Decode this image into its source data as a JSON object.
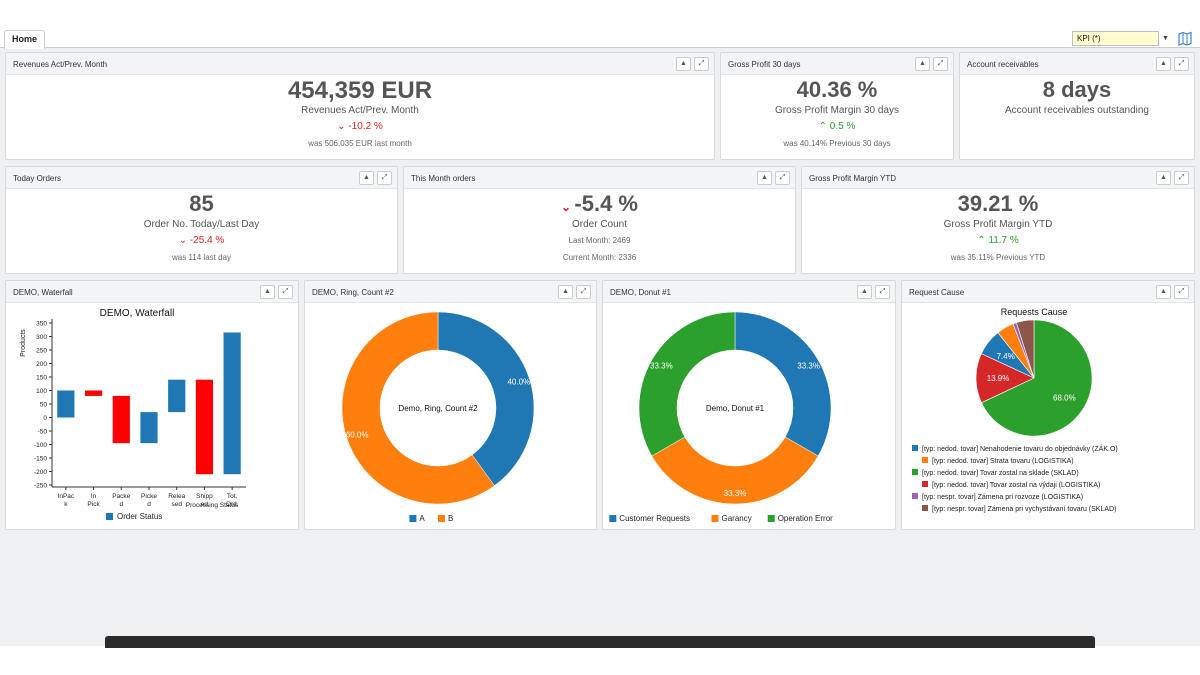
{
  "tabs": {
    "home": "Home"
  },
  "kpi_select": {
    "value": "KPI  (*)"
  },
  "panels": {
    "revenues": {
      "title": "Revenues Act/Prev. Month",
      "value": "454,359 EUR",
      "subtitle": "Revenues Act/Prev. Month",
      "change": "-10.2 %",
      "note": "was 506,035 EUR last month"
    },
    "gross30": {
      "title": "Gross Profit 30 days",
      "value": "40.36 %",
      "subtitle": "Gross Profit Margin 30 days",
      "change": "0.5 %",
      "note": "was 40.14% Previous 30 days"
    },
    "receivables": {
      "title": "Account receivables",
      "value": "8 days",
      "subtitle": "Account receivables outstanding"
    },
    "today_orders": {
      "title": "Today Orders",
      "value": "85",
      "subtitle": "Order No. Today/Last Day",
      "change": "-25.4 %",
      "note": "was 114 last day"
    },
    "month_orders": {
      "title": "This Month orders",
      "value": "-5.4 %",
      "subtitle": "Order Count",
      "line1": "Last Month: 2469",
      "line2": "Current Month: 2336"
    },
    "gross_ytd": {
      "title": "Gross Profit Margin YTD",
      "value": "39.21 %",
      "subtitle": "Gross Profit Margin YTD",
      "change": "11.7 %",
      "note": "was 35.11% Previous YTD"
    },
    "waterfall": {
      "title": "DEMO, Waterfall"
    },
    "ring": {
      "title": "DEMO, Ring, Count #2"
    },
    "donut": {
      "title": "DEMO, Donut #1"
    },
    "request": {
      "title": "Request Cause"
    }
  },
  "colors": {
    "blue": "#1f77b4",
    "orange": "#ff7f0e",
    "green": "#2ca02c",
    "red": "#d62728",
    "purple": "#9467bd",
    "brown": "#8c564b",
    "bar_red": "#ff0000",
    "up": "#2a9a2a",
    "down": "#e02020"
  },
  "icons": {
    "collapse": "caret-up-icon",
    "expand": "expand-arrows-icon",
    "trend_down": "chevron-down-icon",
    "trend_up": "chevron-up-icon",
    "map": "map-icon"
  },
  "chart_data": [
    {
      "type": "bar",
      "title": "DEMO, Waterfall",
      "ylabel": "Products",
      "xlabel": "Processing Status",
      "ylim": [
        -250,
        350
      ],
      "yticks": [
        350,
        300,
        250,
        200,
        150,
        100,
        50,
        0,
        -50,
        -100,
        -150,
        -200,
        -250
      ],
      "categories": [
        "InPack",
        "In Pick",
        "Packed",
        "Picked",
        "Released",
        "Shipped",
        "Tot. Ord."
      ],
      "category_labels": [
        [
          "InPac",
          "k"
        ],
        [
          "In",
          "Pick"
        ],
        [
          "Packe",
          "d"
        ],
        [
          "Picke",
          "d"
        ],
        [
          "Relea",
          "sed"
        ],
        [
          "Shipp",
          "ed"
        ],
        [
          "Tot.",
          "Ord."
        ]
      ],
      "bars": [
        {
          "low": 0,
          "high": 100,
          "color": "#1f77b4"
        },
        {
          "low": 80,
          "high": 100,
          "color": "#ff0000"
        },
        {
          "low": -95,
          "high": 80,
          "color": "#ff0000"
        },
        {
          "low": -95,
          "high": 20,
          "color": "#1f77b4"
        },
        {
          "low": 20,
          "high": 140,
          "color": "#1f77b4"
        },
        {
          "low": -210,
          "high": 140,
          "color": "#ff0000"
        },
        {
          "low": -210,
          "high": 315,
          "color": "#1f77b4"
        }
      ],
      "legend": [
        "Order Status"
      ]
    },
    {
      "type": "pie",
      "title": "",
      "center_label": "Demo, Ring, Count #2",
      "slices": [
        {
          "name": "A",
          "value": 40.0,
          "label": "40.0%",
          "color": "#1f77b4"
        },
        {
          "name": "B",
          "value": 60.0,
          "label": "60.0%",
          "color": "#ff7f0e"
        }
      ]
    },
    {
      "type": "pie",
      "title": "",
      "center_label": "Demo, Donut #1",
      "slices": [
        {
          "name": "Customer Requests",
          "value": 33.3,
          "label": "33.3%",
          "color": "#1f77b4"
        },
        {
          "name": "Garancy",
          "value": 33.3,
          "label": "33.3%",
          "color": "#ff7f0e"
        },
        {
          "name": "Operation Error",
          "value": 33.3,
          "label": "33.3%",
          "color": "#2ca02c"
        }
      ]
    },
    {
      "type": "pie",
      "title": "Requests Cause",
      "slices": [
        {
          "name": "[typ: nedod. tovar] Nenahodenie tovaru do objednávky (ZÁK.O)",
          "value": 7.4,
          "label": "7.4%",
          "color": "#1f77b4"
        },
        {
          "name": "[typ: nedod. tovar] Strata tovaru (LOGISTIKA)",
          "value": 4.8,
          "label": "",
          "color": "#ff7f0e"
        },
        {
          "name": "[typ: nedod. tovar] Tovar zostal na sklade (SKLAD)",
          "value": 68.0,
          "label": "68.0%",
          "color": "#2ca02c"
        },
        {
          "name": "[typ: nedod. tovar] Tovar zostal na výdaji (LOGISTIKA)",
          "value": 13.9,
          "label": "13.9%",
          "color": "#d62728"
        },
        {
          "name": "[typ: nespr. tovar] Zámena pri rozvoze (LOGISTIKA)",
          "value": 1.0,
          "label": "",
          "color": "#9467bd"
        },
        {
          "name": "[typ: nespr. tovar] Zámena pri vychystávaní tovaru (SKLAD)",
          "value": 4.9,
          "label": "",
          "color": "#8c564b"
        }
      ]
    }
  ]
}
